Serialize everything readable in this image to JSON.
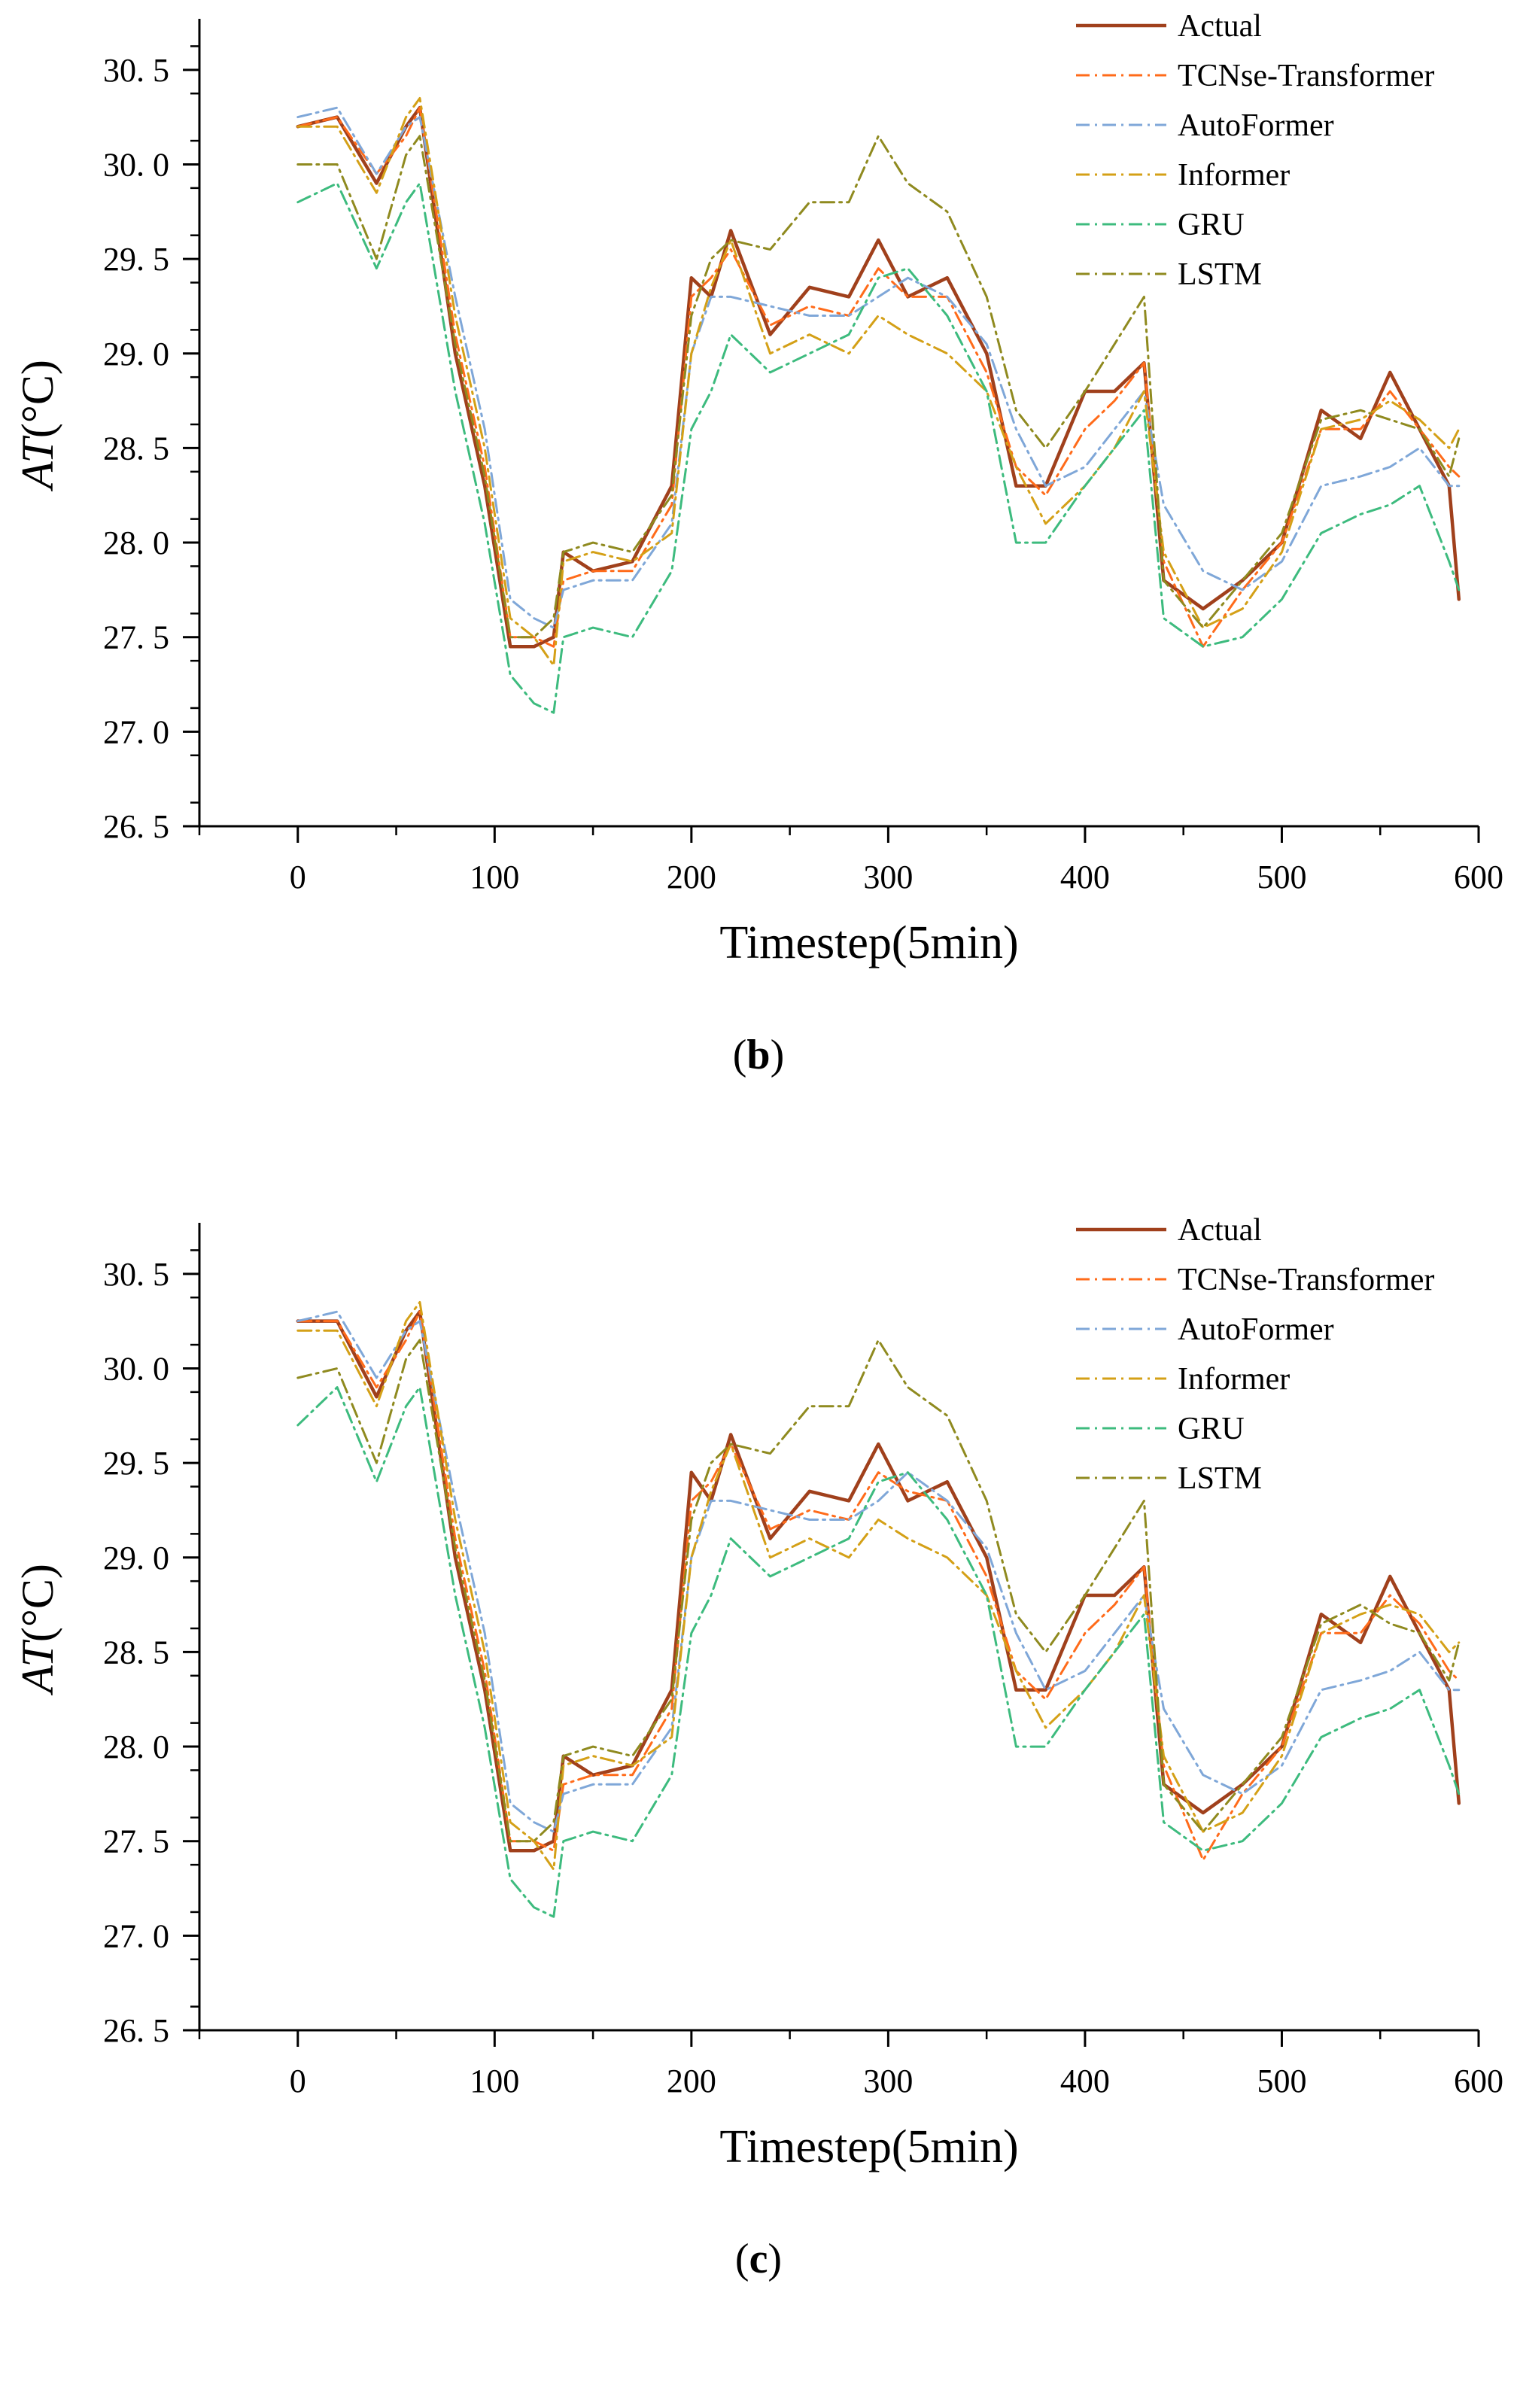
{
  "figure": {
    "caption_b_letter": "b",
    "caption_c_letter": "c",
    "paren_open": "(",
    "paren_close": ")"
  },
  "colors": {
    "Actual": "#a0401c",
    "TCNse-Transformer": "#ff6b1a",
    "AutoFormer": "#7fa7d8",
    "Informer": "#d4a017",
    "GRU": "#3dbb7e",
    "LSTM": "#8f8a1f"
  },
  "chart_data": [
    {
      "id": "b",
      "type": "line",
      "title": "",
      "xlabel": "Timestep(5min)",
      "ylabel_italic": "AT",
      "ylabel_unit": "(°C)",
      "xlim": [
        -50,
        600
      ],
      "ylim": [
        26.5,
        30.75
      ],
      "xticks": [
        0,
        100,
        200,
        300,
        400,
        500,
        600
      ],
      "xtick_labels": [
        "0",
        "100",
        "200",
        "300",
        "400",
        "500",
        "600"
      ],
      "yticks": [
        26.5,
        27.0,
        27.5,
        28.0,
        28.5,
        29.0,
        29.5,
        30.0,
        30.5
      ],
      "ytick_labels": [
        "26. 5",
        "27. 0",
        "27. 5",
        "28. 0",
        "28. 5",
        "29. 0",
        "29. 5",
        "30. 0",
        "30. 5"
      ],
      "legend_position": "top-right",
      "x": [
        0,
        20,
        40,
        55,
        62,
        80,
        95,
        108,
        120,
        130,
        135,
        150,
        170,
        190,
        200,
        210,
        220,
        240,
        260,
        280,
        295,
        310,
        330,
        350,
        365,
        380,
        400,
        415,
        430,
        440,
        460,
        480,
        500,
        520,
        540,
        555,
        570,
        585,
        590
      ],
      "series": [
        {
          "name": "Actual",
          "style": "solid",
          "values": [
            30.2,
            30.25,
            29.9,
            30.2,
            30.3,
            29.0,
            28.3,
            27.45,
            27.45,
            27.5,
            27.95,
            27.85,
            27.9,
            28.3,
            29.4,
            29.3,
            29.65,
            29.1,
            29.35,
            29.3,
            29.6,
            29.3,
            29.4,
            29.0,
            28.3,
            28.3,
            28.8,
            28.8,
            28.95,
            27.8,
            27.65,
            27.8,
            28.0,
            28.7,
            28.55,
            28.9,
            28.6,
            28.3,
            27.7
          ]
        },
        {
          "name": "TCNse-Transformer",
          "style": "dashdot",
          "values": [
            30.2,
            30.25,
            29.95,
            30.15,
            30.3,
            29.1,
            28.4,
            27.5,
            27.5,
            27.45,
            27.8,
            27.85,
            27.85,
            28.2,
            29.3,
            29.4,
            29.55,
            29.15,
            29.25,
            29.2,
            29.45,
            29.3,
            29.3,
            28.9,
            28.4,
            28.25,
            28.6,
            28.75,
            28.95,
            27.9,
            27.45,
            27.75,
            28.0,
            28.6,
            28.6,
            28.8,
            28.6,
            28.4,
            28.35
          ]
        },
        {
          "name": "AutoFormer",
          "style": "dashdot",
          "values": [
            30.25,
            30.3,
            29.95,
            30.2,
            30.25,
            29.3,
            28.6,
            27.7,
            27.6,
            27.55,
            27.75,
            27.8,
            27.8,
            28.1,
            29.0,
            29.3,
            29.3,
            29.25,
            29.2,
            29.2,
            29.3,
            29.4,
            29.3,
            29.05,
            28.6,
            28.3,
            28.4,
            28.6,
            28.8,
            28.2,
            27.85,
            27.75,
            27.9,
            28.3,
            28.35,
            28.4,
            28.5,
            28.3,
            28.3
          ]
        },
        {
          "name": "Informer",
          "style": "dashdot",
          "values": [
            30.2,
            30.2,
            29.85,
            30.25,
            30.35,
            29.2,
            28.5,
            27.6,
            27.5,
            27.35,
            27.9,
            27.95,
            27.9,
            28.05,
            29.0,
            29.35,
            29.6,
            29.0,
            29.1,
            29.0,
            29.2,
            29.1,
            29.0,
            28.8,
            28.4,
            28.1,
            28.3,
            28.5,
            28.8,
            27.95,
            27.55,
            27.65,
            27.95,
            28.6,
            28.65,
            28.75,
            28.65,
            28.5,
            28.6
          ]
        },
        {
          "name": "GRU",
          "style": "dashdot",
          "values": [
            29.8,
            29.9,
            29.45,
            29.8,
            29.9,
            28.8,
            28.1,
            27.3,
            27.15,
            27.1,
            27.5,
            27.55,
            27.5,
            27.85,
            28.6,
            28.8,
            29.1,
            28.9,
            29.0,
            29.1,
            29.4,
            29.45,
            29.2,
            28.8,
            28.0,
            28.0,
            28.3,
            28.5,
            28.7,
            27.6,
            27.45,
            27.5,
            27.7,
            28.05,
            28.15,
            28.2,
            28.3,
            27.9,
            27.75
          ]
        },
        {
          "name": "LSTM",
          "style": "dashdot",
          "values": [
            30.0,
            30.0,
            29.5,
            30.05,
            30.15,
            29.05,
            28.35,
            27.5,
            27.5,
            27.6,
            27.95,
            28.0,
            27.95,
            28.25,
            29.2,
            29.5,
            29.6,
            29.55,
            29.8,
            29.8,
            30.15,
            29.9,
            29.75,
            29.3,
            28.7,
            28.5,
            28.8,
            29.05,
            29.3,
            27.8,
            27.55,
            27.8,
            28.05,
            28.65,
            28.7,
            28.65,
            28.6,
            28.35,
            28.55
          ]
        }
      ]
    },
    {
      "id": "c",
      "type": "line",
      "title": "",
      "xlabel": "Timestep(5min)",
      "ylabel_italic": "AT",
      "ylabel_unit": "(°C)",
      "xlim": [
        -50,
        600
      ],
      "ylim": [
        26.5,
        30.75
      ],
      "xticks": [
        0,
        100,
        200,
        300,
        400,
        500,
        600
      ],
      "xtick_labels": [
        "0",
        "100",
        "200",
        "300",
        "400",
        "500",
        "600"
      ],
      "yticks": [
        26.5,
        27.0,
        27.5,
        28.0,
        28.5,
        29.0,
        29.5,
        30.0,
        30.5
      ],
      "ytick_labels": [
        "26. 5",
        "27. 0",
        "27. 5",
        "28. 0",
        "28. 5",
        "29. 0",
        "29. 5",
        "30. 0",
        "30. 5"
      ],
      "legend_position": "top-right",
      "x": [
        0,
        20,
        40,
        55,
        62,
        80,
        95,
        108,
        120,
        130,
        135,
        150,
        170,
        190,
        200,
        210,
        220,
        240,
        260,
        280,
        295,
        310,
        330,
        350,
        365,
        380,
        400,
        415,
        430,
        440,
        460,
        480,
        500,
        520,
        540,
        555,
        570,
        585,
        590
      ],
      "series": [
        {
          "name": "Actual",
          "style": "solid",
          "values": [
            30.25,
            30.25,
            29.85,
            30.2,
            30.3,
            29.0,
            28.3,
            27.45,
            27.45,
            27.5,
            27.95,
            27.85,
            27.9,
            28.3,
            29.45,
            29.3,
            29.65,
            29.1,
            29.35,
            29.3,
            29.6,
            29.3,
            29.4,
            29.0,
            28.3,
            28.3,
            28.8,
            28.8,
            28.95,
            27.8,
            27.65,
            27.8,
            28.0,
            28.7,
            28.55,
            28.9,
            28.6,
            28.3,
            27.7
          ]
        },
        {
          "name": "TCNse-Transformer",
          "style": "dashdot",
          "values": [
            30.25,
            30.25,
            29.9,
            30.15,
            30.3,
            29.1,
            28.4,
            27.5,
            27.5,
            27.45,
            27.8,
            27.85,
            27.85,
            28.2,
            29.3,
            29.4,
            29.6,
            29.15,
            29.25,
            29.2,
            29.45,
            29.35,
            29.3,
            28.9,
            28.4,
            28.25,
            28.6,
            28.75,
            28.95,
            27.9,
            27.4,
            27.75,
            28.0,
            28.6,
            28.6,
            28.8,
            28.65,
            28.4,
            28.35
          ]
        },
        {
          "name": "AutoFormer",
          "style": "dashdot",
          "values": [
            30.25,
            30.3,
            29.95,
            30.2,
            30.25,
            29.3,
            28.6,
            27.7,
            27.6,
            27.55,
            27.75,
            27.8,
            27.8,
            28.1,
            29.0,
            29.3,
            29.3,
            29.25,
            29.2,
            29.2,
            29.3,
            29.45,
            29.3,
            29.05,
            28.6,
            28.3,
            28.4,
            28.6,
            28.8,
            28.2,
            27.85,
            27.75,
            27.9,
            28.3,
            28.35,
            28.4,
            28.5,
            28.3,
            28.3
          ]
        },
        {
          "name": "Informer",
          "style": "dashdot",
          "values": [
            30.2,
            30.2,
            29.8,
            30.25,
            30.35,
            29.2,
            28.5,
            27.6,
            27.5,
            27.35,
            27.9,
            27.95,
            27.9,
            28.05,
            29.0,
            29.35,
            29.6,
            29.0,
            29.1,
            29.0,
            29.2,
            29.1,
            29.0,
            28.8,
            28.4,
            28.1,
            28.3,
            28.5,
            28.8,
            27.95,
            27.55,
            27.65,
            27.95,
            28.6,
            28.7,
            28.75,
            28.7,
            28.5,
            28.55
          ]
        },
        {
          "name": "GRU",
          "style": "dashdot",
          "values": [
            29.7,
            29.9,
            29.4,
            29.8,
            29.9,
            28.8,
            28.1,
            27.3,
            27.15,
            27.1,
            27.5,
            27.55,
            27.5,
            27.85,
            28.6,
            28.8,
            29.1,
            28.9,
            29.0,
            29.1,
            29.4,
            29.45,
            29.2,
            28.8,
            28.0,
            28.0,
            28.3,
            28.5,
            28.7,
            27.6,
            27.45,
            27.5,
            27.7,
            28.05,
            28.15,
            28.2,
            28.3,
            27.9,
            27.75
          ]
        },
        {
          "name": "LSTM",
          "style": "dashdot",
          "values": [
            29.95,
            30.0,
            29.5,
            30.05,
            30.15,
            29.05,
            28.35,
            27.5,
            27.5,
            27.6,
            27.95,
            28.0,
            27.95,
            28.25,
            29.2,
            29.5,
            29.6,
            29.55,
            29.8,
            29.8,
            30.15,
            29.9,
            29.75,
            29.3,
            28.7,
            28.5,
            28.8,
            29.05,
            29.3,
            27.8,
            27.55,
            27.8,
            28.05,
            28.65,
            28.75,
            28.65,
            28.6,
            28.35,
            28.55
          ]
        }
      ]
    }
  ]
}
